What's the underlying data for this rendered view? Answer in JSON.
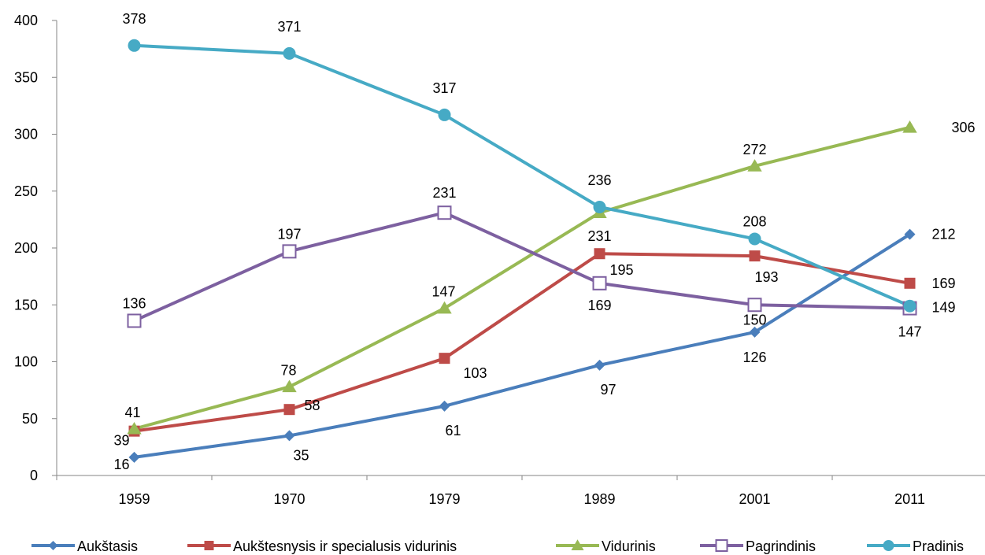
{
  "chart_data": {
    "type": "line",
    "title": "",
    "xlabel": "",
    "ylabel": "",
    "ylim": [
      0,
      400
    ],
    "yticks": [
      0,
      50,
      100,
      150,
      200,
      250,
      300,
      350,
      400
    ],
    "categories": [
      "1959",
      "1970",
      "1979",
      "1989",
      "2001",
      "2011"
    ],
    "grid": false,
    "legend_position": "bottom",
    "series": [
      {
        "name": "Aukštasis",
        "color": "#4a7ebb",
        "marker": "diamond",
        "values": [
          16,
          35,
          61,
          97,
          126,
          212
        ]
      },
      {
        "name": "Aukštesnysis ir specialusis vidurinis",
        "color": "#be4b48",
        "marker": "square",
        "values": [
          39,
          58,
          103,
          195,
          193,
          169
        ]
      },
      {
        "name": "Vidurinis",
        "color": "#98b954",
        "marker": "triangle",
        "values": [
          41,
          78,
          147,
          231,
          272,
          306
        ]
      },
      {
        "name": "Pagrindinis",
        "color": "#7d60a0",
        "marker": "open-square",
        "values": [
          136,
          197,
          231,
          169,
          150,
          147
        ]
      },
      {
        "name": "Pradinis",
        "color": "#46aac5",
        "marker": "circle",
        "values": [
          378,
          371,
          317,
          236,
          208,
          149
        ]
      }
    ]
  }
}
